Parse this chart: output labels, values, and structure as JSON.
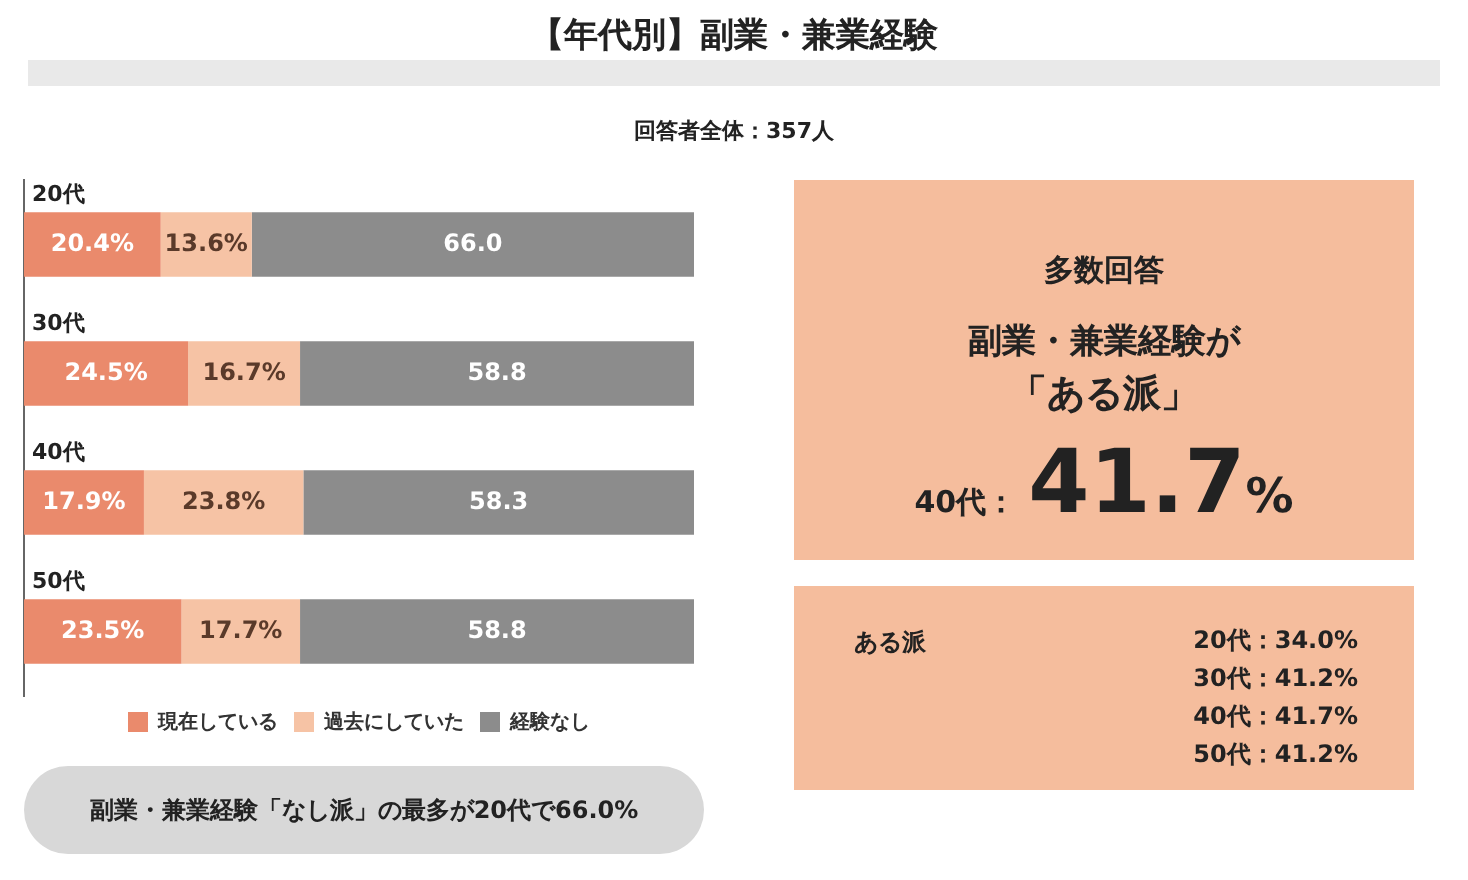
{
  "chart_data": [
    {
      "type": "bar",
      "orientation": "horizontal",
      "stacked": true,
      "title": "【年代別】副業・兼業経験",
      "subtitle": "回答者全体：357人",
      "categories": [
        "20代",
        "30代",
        "40代",
        "50代"
      ],
      "xlim": [
        0,
        100
      ],
      "tick_labels": "y",
      "grid": false,
      "legend": "bottom",
      "annotations": [
        "副業・兼業経験「なし派」の最多が20代で66.0%"
      ],
      "series": [
        {
          "name": "現在している",
          "color": "#ea8a6c",
          "values": [
            20.4,
            24.5,
            17.9,
            23.5
          ],
          "value_labels": [
            "20.4%",
            "24.5%",
            "17.9%",
            "23.5%"
          ]
        },
        {
          "name": "過去にしていた",
          "color": "#f6c3a5",
          "values": [
            13.6,
            16.7,
            23.8,
            17.7
          ],
          "value_labels": [
            "13.6%",
            "16.7%",
            "23.8%",
            "17.7%"
          ]
        },
        {
          "name": "経験なし",
          "color": "#8c8c8c",
          "values": [
            66.0,
            58.8,
            58.3,
            58.8
          ],
          "value_labels": [
            "66.0",
            "58.8",
            "58.3",
            "58.8"
          ]
        }
      ]
    },
    {
      "type": "other",
      "title": "多数回答",
      "annotations": [
        "副業・兼業経験が",
        "「ある派」",
        "40代：",
        "41.7%"
      ]
    },
    {
      "type": "other",
      "title": "ある派",
      "annotations": [
        "20代：34.0%",
        "30代：41.2%",
        "40代：41.7%",
        "50代：41.2%"
      ]
    }
  ]
}
